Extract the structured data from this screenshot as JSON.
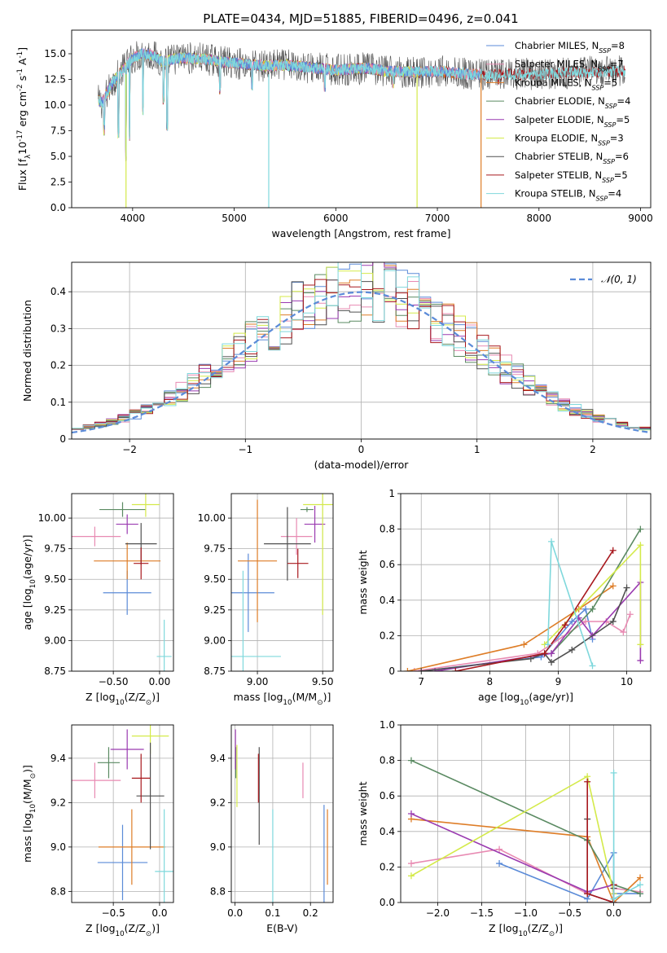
{
  "figure_title": "PLATE=0434, MJD=51885, FIBERID=0496, z=0.041",
  "colors": {
    "Chabrier MILES": "#5b8bd8",
    "Salpeter MILES": "#e88ab2",
    "Kroupa MILES": "#de7d27",
    "Chabrier ELODIE": "#5a8a62",
    "Salpeter ELODIE": "#9a3ab0",
    "Kroupa ELODIE": "#d4ea4a",
    "Chabrier STELIB": "#505050",
    "Salpeter STELIB": "#a8191e",
    "Kroupa STELIB": "#7fd8dc"
  },
  "chart_data": [
    {
      "id": "spectrum",
      "type": "line",
      "xlabel": "wavelength [Angstrom, rest frame]",
      "ylabel": "Flux [f$_\\lambda$10$^{-17}$ erg cm$^{-2}$ s$^{-1}$ A$^{-1}$]",
      "xlim": [
        3400,
        9100
      ],
      "ylim": [
        0,
        17.3
      ],
      "xticks": [
        4000,
        5000,
        6000,
        7000,
        8000,
        9000
      ],
      "yticks": [
        0.0,
        2.5,
        5.0,
        7.5,
        10.0,
        12.5,
        15.0
      ],
      "legend_position": "top-right",
      "legend": [
        {
          "model": "Chabrier MILES",
          "label": "Chabrier MILES, N",
          "sub": "SSP",
          "suffix": "=8"
        },
        {
          "model": "Salpeter MILES",
          "label": "Salpeter MILES, N",
          "sub": "SSP",
          "suffix": "=7"
        },
        {
          "model": "Kroupa MILES",
          "label": "Kroupa MILES, N",
          "sub": "SSP",
          "suffix": "=5"
        },
        {
          "model": "Chabrier ELODIE",
          "label": "Chabrier ELODIE, N",
          "sub": "SSP",
          "suffix": "=4"
        },
        {
          "model": "Salpeter ELODIE",
          "label": "Salpeter ELODIE, N",
          "sub": "SSP",
          "suffix": "=5"
        },
        {
          "model": "Kroupa ELODIE",
          "label": "Kroupa ELODIE, N",
          "sub": "SSP",
          "suffix": "=3"
        },
        {
          "model": "Chabrier STELIB",
          "label": "Chabrier STELIB, N",
          "sub": "SSP",
          "suffix": "=6"
        },
        {
          "model": "Salpeter STELIB",
          "label": "Salpeter STELIB, N",
          "sub": "SSP",
          "suffix": "=5"
        },
        {
          "model": "Kroupa STELIB",
          "label": "Kroupa STELIB, N",
          "sub": "SSP",
          "suffix": "=4"
        }
      ],
      "continuum": [
        [
          3650,
          10.5
        ],
        [
          3700,
          10.2
        ],
        [
          3750,
          11.2
        ],
        [
          3800,
          12.2
        ],
        [
          3850,
          12.8
        ],
        [
          3900,
          13.4
        ],
        [
          3950,
          14.0
        ],
        [
          4000,
          14.6
        ],
        [
          4100,
          15.0
        ],
        [
          4200,
          14.8
        ],
        [
          4300,
          14.2
        ],
        [
          4400,
          14.5
        ],
        [
          4500,
          14.6
        ],
        [
          4700,
          14.5
        ],
        [
          4900,
          14.2
        ],
        [
          5100,
          14.0
        ],
        [
          5300,
          13.8
        ],
        [
          5500,
          13.9
        ],
        [
          5700,
          13.7
        ],
        [
          6000,
          13.4
        ],
        [
          6300,
          13.6
        ],
        [
          6500,
          13.3
        ],
        [
          6800,
          13.2
        ],
        [
          7000,
          13.3
        ],
        [
          7200,
          13.1
        ],
        [
          7500,
          12.9
        ],
        [
          7800,
          13.0
        ],
        [
          8000,
          13.0
        ],
        [
          8200,
          13.1
        ],
        [
          8500,
          13.2
        ],
        [
          8800,
          13.3
        ]
      ],
      "absorption_lines": [
        [
          3720,
          7.0
        ],
        [
          3860,
          6.8
        ],
        [
          3934,
          4.5
        ],
        [
          3970,
          6.5
        ],
        [
          4102,
          9.0
        ],
        [
          4305,
          10.0
        ],
        [
          4341,
          7.4
        ],
        [
          4861,
          11.0
        ],
        [
          5175,
          11.4
        ],
        [
          5892,
          11.3
        ],
        [
          6563,
          11.5
        ],
        [
          7600,
          12.0
        ]
      ],
      "artifacts": [
        [
          3935,
          "Kroupa ELODIE",
          0
        ],
        [
          5340,
          "Kroupa STELIB",
          0
        ],
        [
          6800,
          "Kroupa ELODIE",
          0
        ],
        [
          7430,
          "Kroupa MILES",
          0
        ]
      ]
    },
    {
      "id": "residuals",
      "type": "histogram",
      "xlabel": "(data-model)/error",
      "ylabel": "Normed distribution",
      "xlim": [
        -2.5,
        2.5
      ],
      "ylim": [
        0,
        0.48
      ],
      "xticks": [
        -2,
        -1,
        0,
        1,
        2
      ],
      "yticks": [
        0.0,
        0.1,
        0.2,
        0.3,
        0.4
      ],
      "bins": 50,
      "grid": true,
      "reference": {
        "label": "$\\mathcal{N}(0, 1)$",
        "style": "dashed",
        "color": "#5b8bd8",
        "mean": 0,
        "sigma": 1
      },
      "legend_position": "top-right"
    },
    {
      "id": "age_vs_Z",
      "type": "errorbar",
      "xlabel": "Z [log$_{10}$(Z/Z$_\\odot$)]",
      "ylabel": "age  [log$_{10}$(age/yr)]",
      "xlim": [
        -0.95,
        0.15
      ],
      "ylim": [
        8.75,
        10.2
      ],
      "xticks": [
        -0.5,
        0.0
      ],
      "yticks": [
        8.75,
        9.0,
        9.25,
        9.5,
        9.75,
        10.0
      ],
      "grid": true,
      "points": [
        {
          "model": "Chabrier MILES",
          "x": -0.35,
          "xerr": 0.26,
          "y": 9.39,
          "yerr": 0.18
        },
        {
          "model": "Salpeter MILES",
          "x": -0.7,
          "xerr": 0.28,
          "y": 9.85,
          "yerr": 0.08
        },
        {
          "model": "Kroupa MILES",
          "x": -0.35,
          "xerr": 0.36,
          "y": 9.65,
          "yerr": 0.15
        },
        {
          "model": "Chabrier ELODIE",
          "x": -0.4,
          "xerr": 0.25,
          "y": 10.07,
          "yerr": 0.06
        },
        {
          "model": "Salpeter ELODIE",
          "x": -0.35,
          "xerr": 0.12,
          "y": 9.95,
          "yerr": 0.08
        },
        {
          "model": "Kroupa ELODIE",
          "x": -0.15,
          "xerr": 0.15,
          "y": 10.11,
          "yerr": 0.1
        },
        {
          "model": "Chabrier STELIB",
          "x": -0.2,
          "xerr": 0.17,
          "y": 9.79,
          "yerr": 0.17
        },
        {
          "model": "Salpeter STELIB",
          "x": -0.2,
          "xerr": 0.08,
          "y": 9.63,
          "yerr": 0.13
        },
        {
          "model": "Kroupa STELIB",
          "x": 0.05,
          "xerr": 0.08,
          "y": 8.87,
          "yerr": 0.3
        }
      ]
    },
    {
      "id": "age_vs_mass",
      "type": "errorbar",
      "xlabel": "mass [log$_{10}$(M/M$_\\odot$)]",
      "ylabel": "",
      "xlim": [
        8.8,
        9.58
      ],
      "ylim": [
        8.75,
        10.2
      ],
      "xticks": [
        9.0,
        9.5
      ],
      "yticks": [
        8.75,
        9.0,
        9.25,
        9.5,
        9.75,
        10.0
      ],
      "grid": true,
      "points": [
        {
          "model": "Chabrier MILES",
          "x": 8.93,
          "xerr": 0.2,
          "y": 9.39,
          "yerr": 0.32
        },
        {
          "model": "Salpeter MILES",
          "x": 9.3,
          "xerr": 0.12,
          "y": 9.85,
          "yerr": 0.15
        },
        {
          "model": "Kroupa MILES",
          "x": 9.0,
          "xerr": 0.15,
          "y": 9.65,
          "yerr": 0.5
        },
        {
          "model": "Chabrier ELODIE",
          "x": 9.38,
          "xerr": 0.05,
          "y": 10.07,
          "yerr": 0.02
        },
        {
          "model": "Salpeter ELODIE",
          "x": 9.44,
          "xerr": 0.08,
          "y": 9.95,
          "yerr": 0.15
        },
        {
          "model": "Kroupa ELODIE",
          "x": 9.5,
          "xerr": 0.15,
          "y": 10.11,
          "yerr": 0.9
        },
        {
          "model": "Chabrier STELIB",
          "x": 9.23,
          "xerr": 0.18,
          "y": 9.79,
          "yerr": 0.3
        },
        {
          "model": "Salpeter STELIB",
          "x": 9.31,
          "xerr": 0.08,
          "y": 9.63,
          "yerr": 0.12
        },
        {
          "model": "Kroupa STELIB",
          "x": 8.89,
          "xerr": 0.29,
          "y": 8.87,
          "yerr": 0.7
        }
      ]
    },
    {
      "id": "mass_weight_vs_age",
      "type": "line",
      "xlabel": "age  [log$_{10}$(age/yr)]",
      "ylabel": "mass weight",
      "xlim": [
        6.7,
        10.35
      ],
      "ylim": [
        0,
        1.0
      ],
      "xticks": [
        7,
        8,
        9,
        10
      ],
      "yticks": [
        0.0,
        0.2,
        0.4,
        0.6,
        0.8,
        1.0
      ],
      "grid": true,
      "series": [
        {
          "model": "Chabrier MILES",
          "x": [
            7.0,
            8.75,
            9.2,
            9.4,
            9.5
          ],
          "y": [
            0.0,
            0.08,
            0.28,
            0.35,
            0.18
          ]
        },
        {
          "model": "Salpeter MILES",
          "x": [
            6.9,
            8.7,
            9.4,
            9.7,
            9.95,
            10.05
          ],
          "y": [
            0.0,
            0.1,
            0.28,
            0.28,
            0.22,
            0.32
          ]
        },
        {
          "model": "Kroupa MILES",
          "x": [
            6.8,
            8.5,
            9.3,
            9.8
          ],
          "y": [
            0.0,
            0.15,
            0.35,
            0.48
          ]
        },
        {
          "model": "Chabrier ELODIE",
          "x": [
            8.9,
            9.5,
            10.2
          ],
          "y": [
            0.1,
            0.35,
            0.8
          ]
        },
        {
          "model": "Salpeter ELODIE",
          "x": [
            7.2,
            8.9,
            9.3,
            9.5,
            10.2,
            10.2
          ],
          "y": [
            0.0,
            0.1,
            0.3,
            0.2,
            0.5,
            0.06
          ]
        },
        {
          "model": "Kroupa ELODIE",
          "x": [
            8.8,
            10.2,
            10.2
          ],
          "y": [
            0.15,
            0.71,
            0.15
          ]
        },
        {
          "model": "Chabrier STELIB",
          "x": [
            7.0,
            8.6,
            8.8,
            8.9,
            9.2,
            9.8,
            10.0
          ],
          "y": [
            0.0,
            0.07,
            0.1,
            0.05,
            0.12,
            0.28,
            0.47
          ]
        },
        {
          "model": "Salpeter STELIB",
          "x": [
            7.5,
            8.8,
            9.1,
            9.8
          ],
          "y": [
            0.0,
            0.1,
            0.26,
            0.68
          ]
        },
        {
          "model": "Kroupa STELIB",
          "x": [
            8.85,
            8.9,
            9.5
          ],
          "y": [
            0.15,
            0.73,
            0.03
          ]
        }
      ]
    },
    {
      "id": "mass_vs_Z",
      "type": "errorbar",
      "xlabel": "Z [log$_{10}$(Z/Z$_\\odot$)]",
      "ylabel": "mass [log$_{10}$(M/M$_\\odot$)]",
      "xlim": [
        -0.95,
        0.15
      ],
      "ylim": [
        8.75,
        9.55
      ],
      "xticks": [
        -0.5,
        0.0
      ],
      "yticks": [
        8.8,
        9.0,
        9.2,
        9.4
      ],
      "grid": true,
      "points": [
        {
          "model": "Chabrier MILES",
          "x": -0.4,
          "xerr": 0.27,
          "y": 8.93,
          "yerr": 0.17
        },
        {
          "model": "Salpeter MILES",
          "x": -0.7,
          "xerr": 0.28,
          "y": 9.3,
          "yerr": 0.08
        },
        {
          "model": "Kroupa MILES",
          "x": -0.3,
          "xerr": 0.36,
          "y": 9.0,
          "yerr": 0.17
        },
        {
          "model": "Chabrier ELODIE",
          "x": -0.55,
          "xerr": 0.12,
          "y": 9.38,
          "yerr": 0.07
        },
        {
          "model": "Salpeter ELODIE",
          "x": -0.35,
          "xerr": 0.18,
          "y": 9.44,
          "yerr": 0.09
        },
        {
          "model": "Kroupa ELODIE",
          "x": -0.1,
          "xerr": 0.2,
          "y": 9.5,
          "yerr": 0.08
        },
        {
          "model": "Chabrier STELIB",
          "x": -0.1,
          "xerr": 0.15,
          "y": 9.23,
          "yerr": 0.24
        },
        {
          "model": "Salpeter STELIB",
          "x": -0.2,
          "xerr": 0.1,
          "y": 9.31,
          "yerr": 0.11
        },
        {
          "model": "Kroupa STELIB",
          "x": 0.05,
          "xerr": 0.1,
          "y": 8.89,
          "yerr": 0.28
        }
      ]
    },
    {
      "id": "mass_vs_ebv",
      "type": "errorbar",
      "xlabel": "E(B-V)",
      "ylabel": "",
      "xlim": [
        -0.01,
        0.26
      ],
      "ylim": [
        8.75,
        9.55
      ],
      "xticks": [
        0.0,
        0.1,
        0.2
      ],
      "yticks": [
        8.8,
        9.0,
        9.2,
        9.4
      ],
      "grid": true,
      "points": [
        {
          "model": "Chabrier MILES",
          "x": 0.236,
          "xerr": 0,
          "y": 8.93,
          "yerr": 0.26
        },
        {
          "model": "Salpeter MILES",
          "x": 0.18,
          "xerr": 0,
          "y": 9.3,
          "yerr": 0.08
        },
        {
          "model": "Kroupa MILES",
          "x": 0.245,
          "xerr": 0,
          "y": 9.0,
          "yerr": 0.17
        },
        {
          "model": "Chabrier ELODIE",
          "x": 0.002,
          "xerr": 0,
          "y": 9.38,
          "yerr": 0.07
        },
        {
          "model": "Salpeter ELODIE",
          "x": 0.001,
          "xerr": 0,
          "y": 9.44,
          "yerr": 0.09
        },
        {
          "model": "Kroupa ELODIE",
          "x": 0.005,
          "xerr": 0,
          "y": 9.32,
          "yerr": 0.14
        },
        {
          "model": "Chabrier STELIB",
          "x": 0.064,
          "xerr": 0,
          "y": 9.23,
          "yerr": 0.22
        },
        {
          "model": "Salpeter STELIB",
          "x": 0.062,
          "xerr": 0,
          "y": 9.31,
          "yerr": 0.11
        },
        {
          "model": "Kroupa STELIB",
          "x": 0.1,
          "xerr": 0,
          "y": 8.95,
          "yerr": 0.22
        }
      ]
    },
    {
      "id": "mass_weight_vs_Z",
      "type": "line",
      "xlabel": "Z [log$_{10}$(Z/Z$_\\odot$)]",
      "ylabel": "mass weight",
      "xlim": [
        -2.42,
        0.42
      ],
      "ylim": [
        0,
        1.0
      ],
      "xticks": [
        -2.0,
        -1.5,
        -1.0,
        -0.5,
        0.0
      ],
      "yticks": [
        0.0,
        0.2,
        0.4,
        0.6,
        0.8,
        1.0
      ],
      "grid": true,
      "series": [
        {
          "model": "Chabrier MILES",
          "x": [
            -1.3,
            -0.3,
            0.0,
            0.0,
            0.3
          ],
          "y": [
            0.22,
            0.02,
            0.28,
            0.05,
            0.05
          ]
        },
        {
          "model": "Salpeter MILES",
          "x": [
            -2.3,
            -1.3,
            -0.3,
            0.0,
            0.0,
            0.3
          ],
          "y": [
            0.22,
            0.3,
            0.05,
            0.0,
            0.08,
            0.06
          ]
        },
        {
          "model": "Kroupa MILES",
          "x": [
            -2.3,
            -0.3,
            0.0,
            0.3
          ],
          "y": [
            0.47,
            0.37,
            0.0,
            0.14
          ]
        },
        {
          "model": "Chabrier ELODIE",
          "x": [
            -2.3,
            -0.3,
            0.0,
            0.3
          ],
          "y": [
            0.8,
            0.35,
            0.1,
            0.05
          ]
        },
        {
          "model": "Salpeter ELODIE",
          "x": [
            -2.3,
            -0.3,
            0.0,
            0.0
          ],
          "y": [
            0.5,
            0.06,
            0.1,
            0.0
          ]
        },
        {
          "model": "Kroupa ELODIE",
          "x": [
            -2.3,
            -0.3,
            0.0
          ],
          "y": [
            0.15,
            0.71,
            0.05
          ]
        },
        {
          "model": "Chabrier STELIB",
          "x": [
            -0.3,
            -0.3,
            0.0,
            0.0
          ],
          "y": [
            0.47,
            0.05,
            0.0,
            0.08
          ]
        },
        {
          "model": "Salpeter STELIB",
          "x": [
            -0.3,
            -0.3,
            0.0,
            0.0
          ],
          "y": [
            0.68,
            0.05,
            0.0,
            0.1
          ]
        },
        {
          "model": "Kroupa STELIB",
          "x": [
            0.0,
            0.0,
            0.3
          ],
          "y": [
            0.73,
            0.02,
            0.1
          ]
        }
      ]
    }
  ]
}
